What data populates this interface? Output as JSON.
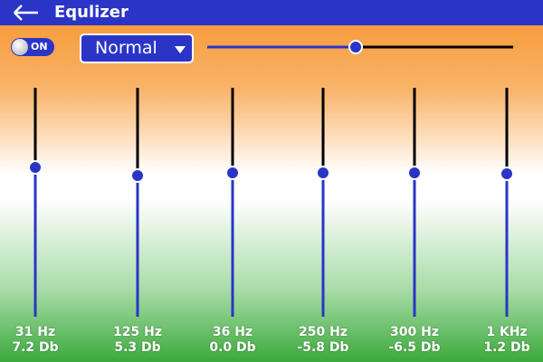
{
  "header": {
    "title": "Equlizer"
  },
  "controls": {
    "toggle": "ON",
    "preset": "Normal"
  },
  "bands": [
    {
      "frequency": "31 Hz",
      "gain": "7.2 Db"
    },
    {
      "frequency": "125 Hz",
      "gain": "5.3 Db"
    },
    {
      "frequency": "36 Hz",
      "gain": "0.0 Db"
    },
    {
      "frequency": "250 Hz",
      "gain": "-5.8 Db"
    },
    {
      "frequency": "300 Hz",
      "gain": "-6.5 Db"
    },
    {
      "frequency": "1 KHz",
      "gain": "1.2 Db"
    }
  ]
}
